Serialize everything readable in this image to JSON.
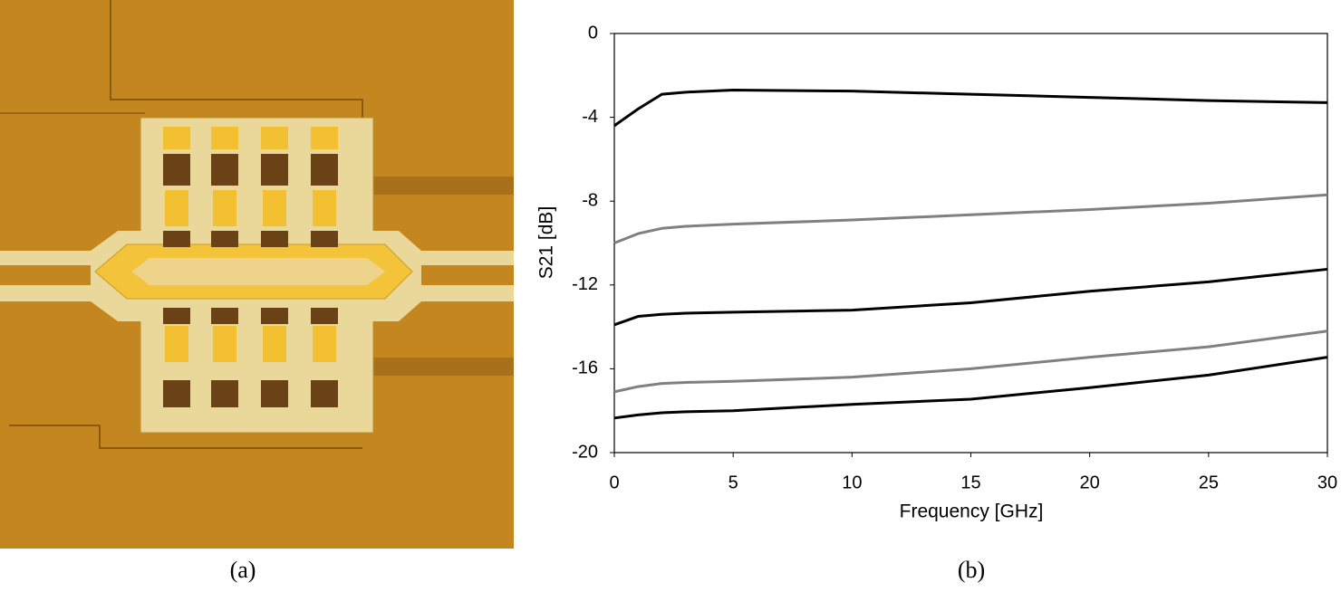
{
  "image_caption": "(a)",
  "chart_data": {
    "type": "line",
    "caption": "(b)",
    "x_label": "Frequency [GHz]",
    "y_label": "S21 [dB]",
    "x": [
      0,
      1,
      2,
      3,
      5,
      10,
      15,
      20,
      25,
      30
    ],
    "series": [
      {
        "color": "#000000",
        "values": [
          -4.4,
          -3.6,
          -2.9,
          -2.8,
          -2.7,
          -2.75,
          -2.9,
          -3.05,
          -3.2,
          -3.3
        ]
      },
      {
        "color": "#808080",
        "values": [
          -10.0,
          -9.55,
          -9.3,
          -9.2,
          -9.1,
          -8.9,
          -8.65,
          -8.4,
          -8.1,
          -7.7
        ]
      },
      {
        "color": "#000000",
        "values": [
          -13.9,
          -13.5,
          -13.4,
          -13.35,
          -13.3,
          -13.2,
          -12.85,
          -12.3,
          -11.85,
          -11.25
        ]
      },
      {
        "color": "#808080",
        "values": [
          -17.1,
          -16.85,
          -16.7,
          -16.65,
          -16.6,
          -16.4,
          -16.0,
          -15.45,
          -14.95,
          -14.2
        ]
      },
      {
        "color": "#000000",
        "values": [
          -18.35,
          -18.2,
          -18.1,
          -18.05,
          -18.0,
          -17.7,
          -17.45,
          -16.9,
          -16.3,
          -15.45
        ]
      }
    ],
    "xlim": [
      0,
      30
    ],
    "xticks": [
      0,
      5,
      10,
      15,
      20,
      25,
      30
    ],
    "ylim": [
      -20,
      0
    ],
    "yticks": [
      -20,
      -16,
      -12,
      -8,
      -4,
      0
    ],
    "grid": false
  }
}
